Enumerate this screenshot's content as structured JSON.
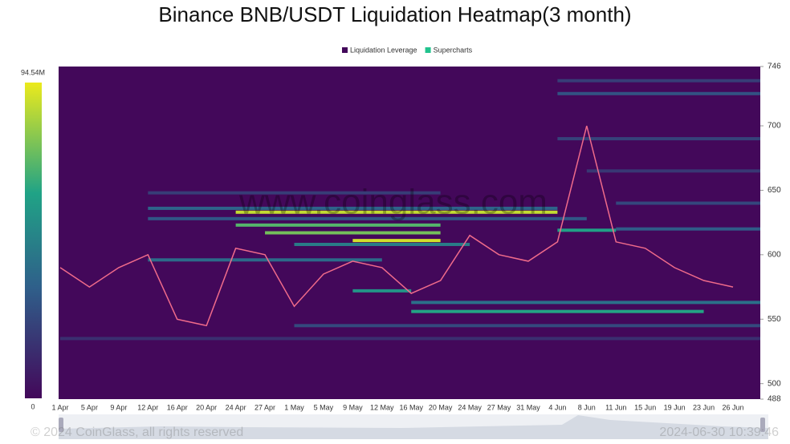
{
  "chart_data": {
    "type": "heatmap",
    "title": "Binance BNB/USDT Liquidation Heatmap(3 month)",
    "watermark": "www.coinglass.com",
    "copyright": "© 2024 CoinGlass, all rights reserved",
    "timestamp": "2024-06-30 10:39:46",
    "series": [
      {
        "name": "Liquidation Leverage",
        "color": "#43085a"
      },
      {
        "name": "Supercharts",
        "color": "#22c38e"
      }
    ],
    "categories": [
      "1 Apr",
      "5 Apr",
      "9 Apr",
      "12 Apr",
      "16 Apr",
      "20 Apr",
      "24 Apr",
      "27 Apr",
      "1 May",
      "5 May",
      "9 May",
      "12 May",
      "16 May",
      "20 May",
      "24 May",
      "27 May",
      "31 May",
      "4 Jun",
      "8 Jun",
      "11 Jun",
      "15 Jun",
      "19 Jun",
      "23 Jun",
      "26 Jun"
    ],
    "price": [
      590,
      575,
      590,
      600,
      550,
      545,
      605,
      600,
      560,
      585,
      595,
      590,
      570,
      580,
      615,
      600,
      595,
      610,
      700,
      610,
      605,
      590,
      580,
      575
    ],
    "ylim": [
      488,
      746
    ],
    "yticks": [
      488,
      500,
      550,
      600,
      650,
      700,
      746
    ],
    "zlim": [
      0,
      94540000
    ],
    "zticks": [
      0,
      {
        "value": 94540000,
        "label": "94.54M"
      }
    ],
    "levels": [
      {
        "price": 648,
        "start": "12 Apr",
        "end": "20 May",
        "value": 20000000
      },
      {
        "price": 636,
        "start": "12 Apr",
        "end": "4 Jun",
        "value": 35000000
      },
      {
        "price": 633,
        "start": "24 Apr",
        "end": "4 Jun",
        "value": 88000000
      },
      {
        "price": 628,
        "start": "12 Apr",
        "end": "8 Jun",
        "value": 30000000
      },
      {
        "price": 623,
        "start": "24 Apr",
        "end": "20 May",
        "value": 70000000
      },
      {
        "price": 619,
        "start": "4 Jun",
        "end": "11 Jun",
        "value": 60000000
      },
      {
        "price": 617,
        "start": "27 Apr",
        "end": "20 May",
        "value": 75000000
      },
      {
        "price": 611,
        "start": "9 May",
        "end": "20 May",
        "value": 90000000
      },
      {
        "price": 608,
        "start": "1 May",
        "end": "24 May",
        "value": 45000000
      },
      {
        "price": 572,
        "start": "9 May",
        "end": "16 May",
        "value": 55000000
      },
      {
        "price": 563,
        "start": "16 May",
        "end": "26 Jun",
        "value": 40000000
      },
      {
        "price": 556,
        "start": "16 May",
        "end": "23 Jun",
        "value": 62000000
      },
      {
        "price": 545,
        "start": "1 May",
        "end": "26 Jun",
        "value": 25000000
      },
      {
        "price": 535,
        "start": "1 Apr",
        "end": "26 Jun",
        "value": 15000000
      },
      {
        "price": 690,
        "start": "4 Jun",
        "end": "26 Jun",
        "value": 22000000
      },
      {
        "price": 725,
        "start": "4 Jun",
        "end": "26 Jun",
        "value": 28000000
      },
      {
        "price": 735,
        "start": "4 Jun",
        "end": "26 Jun",
        "value": 20000000
      },
      {
        "price": 665,
        "start": "8 Jun",
        "end": "26 Jun",
        "value": 18000000
      },
      {
        "price": 640,
        "start": "11 Jun",
        "end": "26 Jun",
        "value": 24000000
      },
      {
        "price": 620,
        "start": "11 Jun",
        "end": "26 Jun",
        "value": 32000000
      },
      {
        "price": 596,
        "start": "12 Apr",
        "end": "12 May",
        "value": 38000000
      }
    ]
  }
}
